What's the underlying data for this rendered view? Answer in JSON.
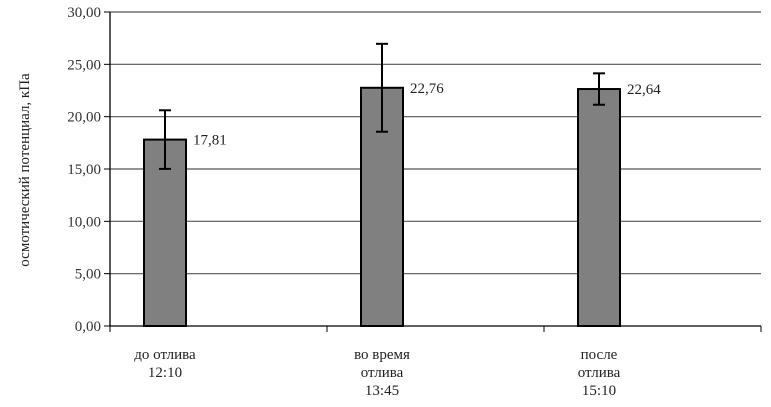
{
  "chart_data": {
    "type": "bar",
    "title": "",
    "xlabel": "",
    "ylabel": "осмотический потенциал, кПа",
    "ylim": [
      0,
      30
    ],
    "yticks": [
      "0,00",
      "5,00",
      "10,00",
      "15,00",
      "20,00",
      "25,00",
      "30,00"
    ],
    "grid": true,
    "categories": [
      [
        "до отлива",
        "12:10"
      ],
      [
        "во время",
        "отлива",
        "13:45"
      ],
      [
        "после",
        "отлива",
        "15:10"
      ]
    ],
    "values": [
      17.81,
      22.76,
      22.64
    ],
    "data_labels": [
      "17,81",
      "22,76",
      "22,64"
    ],
    "error": [
      2.8,
      4.2,
      1.5
    ],
    "bar_color": "#808080"
  }
}
